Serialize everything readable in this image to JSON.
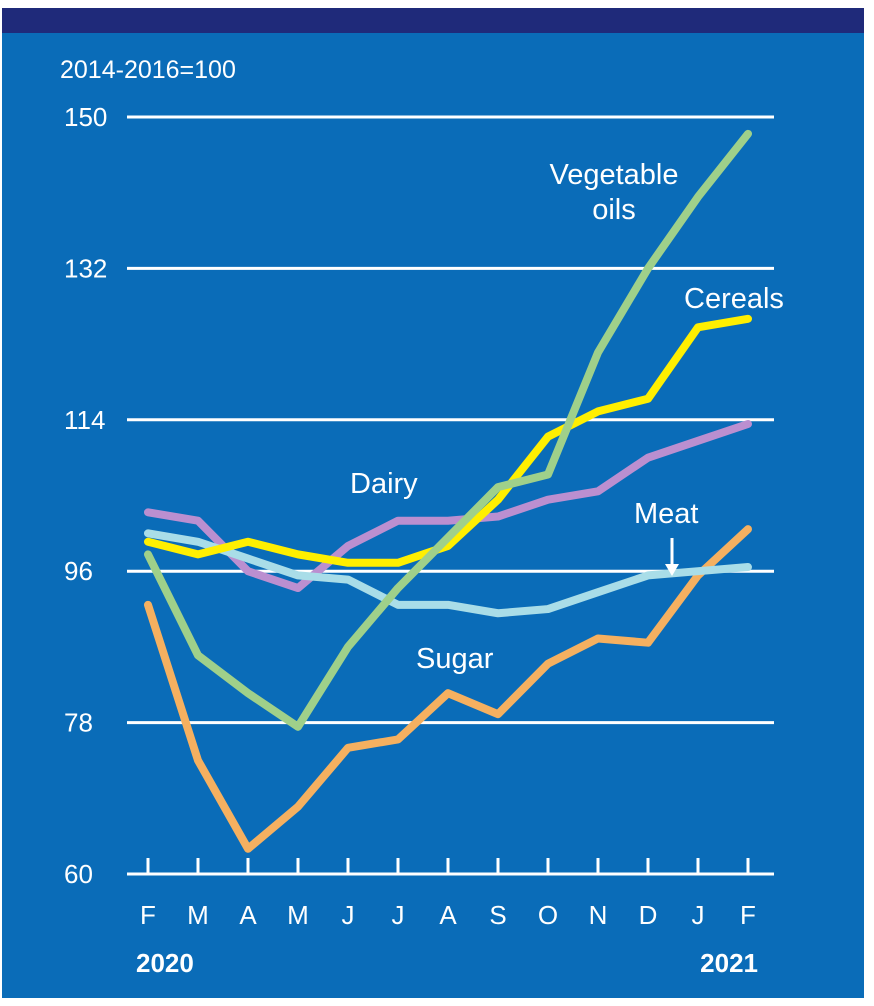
{
  "chart_data": {
    "type": "line",
    "unit_label": "2014-2016=100",
    "ylim": [
      60,
      150
    ],
    "yticks": [
      60,
      78,
      96,
      114,
      132,
      150
    ],
    "categories": [
      "F",
      "M",
      "A",
      "M",
      "J",
      "J",
      "A",
      "S",
      "O",
      "N",
      "D",
      "J",
      "F"
    ],
    "year_labels": [
      "2020",
      "2021"
    ],
    "grid": true,
    "series": [
      {
        "name": "Vegetable oils",
        "label_lines": [
          "Vegetable",
          "oils"
        ],
        "color": "#9fd08a",
        "values": [
          98,
          86,
          81.5,
          77.5,
          87,
          94,
          100,
          106,
          107.5,
          122,
          132,
          140.5,
          148
        ]
      },
      {
        "name": "Cereals",
        "label_lines": [
          "Cereals"
        ],
        "color": "#ffef00",
        "values": [
          99.5,
          98,
          99.5,
          98,
          97,
          97,
          99,
          104.5,
          112,
          115,
          116.5,
          125,
          126
        ]
      },
      {
        "name": "Dairy",
        "label_lines": [
          "Dairy"
        ],
        "color": "#bb8fd0",
        "values": [
          103,
          102,
          96,
          94,
          99,
          102,
          102,
          102.5,
          104.5,
          105.5,
          109.5,
          111.5,
          113.5
        ]
      },
      {
        "name": "Meat",
        "label_lines": [
          "Meat"
        ],
        "color": "#a9dde8",
        "values": [
          100.5,
          99.5,
          97.5,
          95.5,
          95,
          92,
          92,
          91,
          91.5,
          93.5,
          95.5,
          96,
          96.5
        ]
      },
      {
        "name": "Sugar",
        "label_lines": [
          "Sugar"
        ],
        "color": "#f5b060",
        "values": [
          92,
          73.5,
          63,
          68,
          75,
          76,
          81.5,
          79,
          85,
          88,
          87.5,
          95.5,
          101
        ]
      }
    ]
  }
}
